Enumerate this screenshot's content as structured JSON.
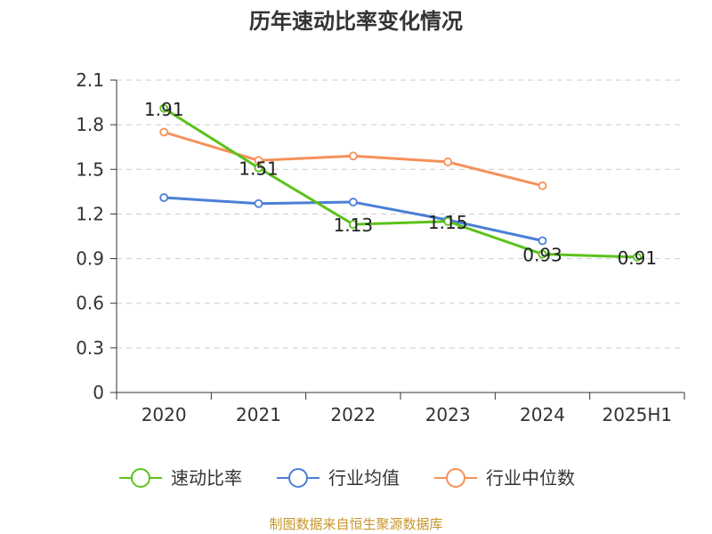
{
  "chart_data": {
    "type": "line",
    "title": "历年速动比率变化情况",
    "categories": [
      "2020",
      "2021",
      "2022",
      "2023",
      "2024",
      "2025H1"
    ],
    "ylim": [
      0,
      2.1
    ],
    "yticks": [
      "0",
      "0.3",
      "0.6",
      "0.9",
      "1.2",
      "1.5",
      "1.8",
      "2.1"
    ],
    "grid": true,
    "legend_position": "bottom",
    "series": [
      {
        "name": "速动比率",
        "color": "#5cc21b",
        "values": [
          1.91,
          1.51,
          1.13,
          1.15,
          0.93,
          0.91
        ],
        "labels": [
          "1.91",
          "1.51",
          "1.13",
          "1.15",
          "0.93",
          "0.91"
        ]
      },
      {
        "name": "行业均值",
        "color": "#4a7fd6",
        "values": [
          1.31,
          1.27,
          1.28,
          1.16,
          1.02,
          null
        ]
      },
      {
        "name": "行业中位数",
        "color": "#f5915a",
        "values": [
          1.75,
          1.56,
          1.59,
          1.55,
          1.39,
          null
        ]
      }
    ]
  },
  "source_text": "制图数据来自恒生聚源数据库",
  "source_color": "#c8962a"
}
